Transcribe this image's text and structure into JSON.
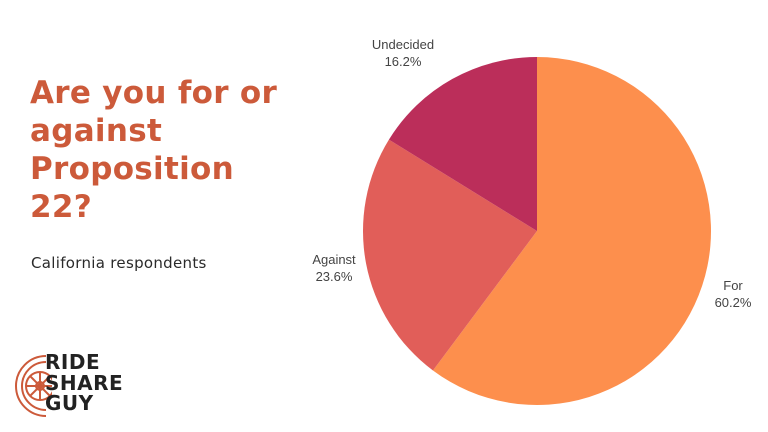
{
  "header": {
    "title": "Are you for or against Proposition 22?",
    "subtitle": "California respondents"
  },
  "logo": {
    "lines": [
      "RIDE",
      "SHARE",
      "GUY"
    ],
    "icon": "wheel-icon"
  },
  "colors": {
    "title": "#cc5a3a",
    "for": "#fd8f4d",
    "against": "#e15e59",
    "undecided": "#bb2e5a"
  },
  "labels": {
    "undecided": {
      "name": "Undecided",
      "pct": "16.2%"
    },
    "against": {
      "name": "Against",
      "pct": "23.6%"
    },
    "for": {
      "name": "For",
      "pct": "60.2%"
    }
  },
  "chart_data": {
    "type": "pie",
    "title": "Are you for or against Proposition 22?",
    "subtitle": "California respondents",
    "categories": [
      "For",
      "Against",
      "Undecided"
    ],
    "values": [
      60.2,
      23.6,
      16.2
    ],
    "unit": "%",
    "colors": [
      "#fd8f4d",
      "#e15e59",
      "#bb2e5a"
    ],
    "start_angle": "12 o'clock, clockwise",
    "legend": "none (inline labels)"
  }
}
